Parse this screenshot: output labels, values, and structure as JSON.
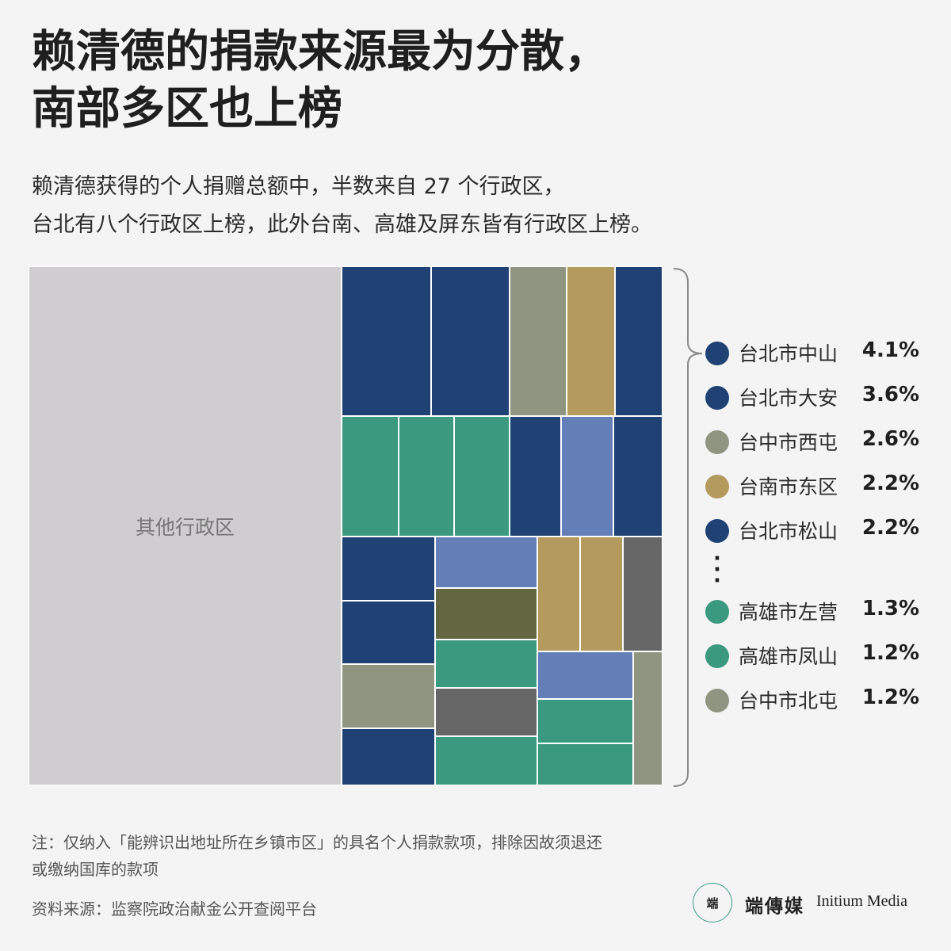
{
  "header": {
    "title_line1": "赖清德的捐款来源最为分散，",
    "title_line2": "南部多区也上榜",
    "subtitle_line1": "赖清德获得的个人捐赠总额中，半数来自 27 个行政区，",
    "subtitle_line2": "台北有八个行政区上榜，此外台南、高雄及屏东皆有行政区上榜。"
  },
  "colors": {
    "other": "#cfcdcf",
    "taipei": "#1f4173",
    "taichung": "#8f9580",
    "tainan": "#b49a5c",
    "kaohsiung": "#3a997e",
    "blue_light": "#647fb8",
    "olive_dark": "#636641",
    "gray_dark": "#666666"
  },
  "chart_data": {
    "type": "treemap",
    "other_label": "其他行政区",
    "legend": [
      {
        "name": "台北市中山",
        "value": "4.1%",
        "color": "#1f4173"
      },
      {
        "name": "台北市大安",
        "value": "3.6%",
        "color": "#1f4173"
      },
      {
        "name": "台中市西屯",
        "value": "2.6%",
        "color": "#8f9580"
      },
      {
        "name": "台南市东区",
        "value": "2.2%",
        "color": "#b49a5c"
      },
      {
        "name": "台北市松山",
        "value": "2.2%",
        "color": "#1f4173"
      },
      {
        "name": "高雄市左营",
        "value": "1.3%",
        "color": "#3a997e"
      },
      {
        "name": "高雄市凤山",
        "value": "1.2%",
        "color": "#3a997e"
      },
      {
        "name": "台中市北屯",
        "value": "1.2%",
        "color": "#8f9580"
      }
    ]
  },
  "footer": {
    "note_line1": "注：仅纳入「能辨识出地址所在乡镇市区」的具名个人捐款款项，排除因故须退还",
    "note_line2": "或缴纳国库的款项",
    "source": "资料来源：监察院政治献金公开查阅平台",
    "logo_mark": "端",
    "logo_cn": "端傳媒",
    "logo_en": "Initium Media"
  }
}
